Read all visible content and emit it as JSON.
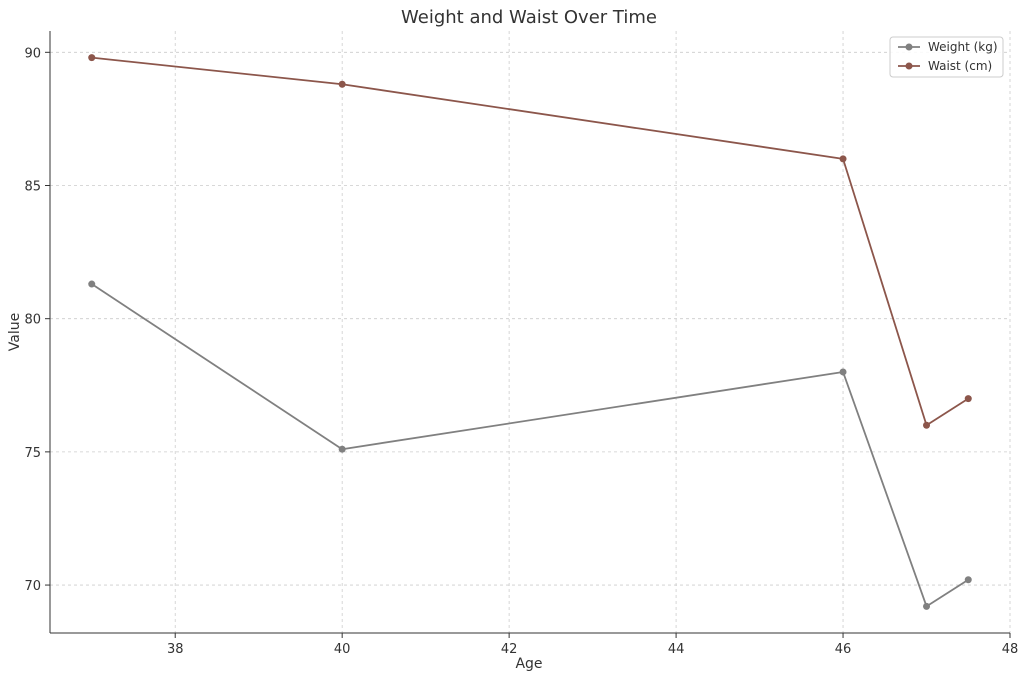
{
  "chart_data": {
    "type": "line",
    "title": "Weight and Waist Over Time",
    "xlabel": "Age",
    "ylabel": "Value",
    "xlim": [
      36.5,
      48
    ],
    "ylim": [
      68.2,
      90.8
    ],
    "xticks": [
      38,
      40,
      42,
      44,
      46,
      48
    ],
    "yticks": [
      70,
      75,
      80,
      85,
      90
    ],
    "grid": true,
    "legend_position": "top-right",
    "series": [
      {
        "name": "Weight (kg)",
        "color": "#808080",
        "x": [
          37,
          40,
          46,
          47,
          47.5
        ],
        "y": [
          81.3,
          75.1,
          78.0,
          69.2,
          70.2
        ]
      },
      {
        "name": "Waist (cm)",
        "color": "#8c564b",
        "x": [
          37,
          40,
          46,
          47,
          47.5
        ],
        "y": [
          89.8,
          88.8,
          86.0,
          76.0,
          77.0
        ]
      }
    ]
  }
}
